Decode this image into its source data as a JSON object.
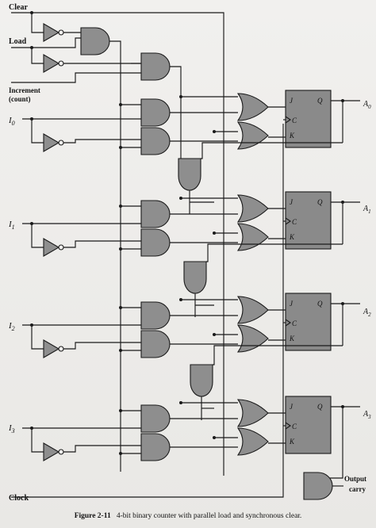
{
  "inputs": {
    "clear": "Clear",
    "load": "Load",
    "increment": "Increment",
    "increment_sub": "(count)",
    "i0": "I",
    "i0_sub": "0",
    "i1": "I",
    "i1_sub": "1",
    "i2": "I",
    "i2_sub": "2",
    "i3": "I",
    "i3_sub": "3",
    "clock": "Clock"
  },
  "flipflop": {
    "j": "J",
    "c": "C",
    "k": "K",
    "q": "Q"
  },
  "outputs": {
    "a0": "A",
    "a0_sub": "0",
    "a1": "A",
    "a1_sub": "1",
    "a2": "A",
    "a2_sub": "2",
    "a3": "A",
    "a3_sub": "3",
    "carry_line1": "Output",
    "carry_line2": "carry"
  },
  "caption": {
    "label": "Figure 2-11",
    "text": "4-bit binary counter with parallel load and synchronous clear."
  }
}
